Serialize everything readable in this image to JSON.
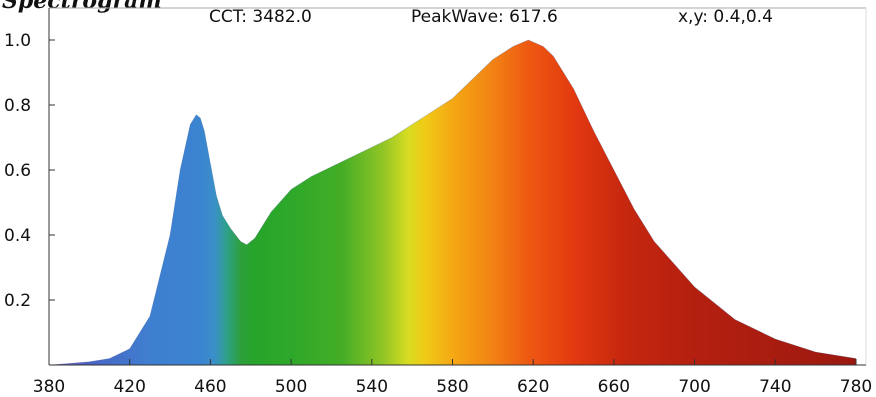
{
  "title": "Spectrogram",
  "info": {
    "cct": "CCT: 3482.0",
    "peak": "PeakWave: 617.6",
    "xy": "x,y: 0.4,0.4"
  },
  "chart_data": {
    "type": "area",
    "title": "Spectrogram",
    "xlabel": "",
    "ylabel": "",
    "xlim": [
      380,
      780
    ],
    "ylim": [
      0,
      1.0
    ],
    "xticks": [
      380,
      420,
      460,
      500,
      540,
      580,
      620,
      660,
      700,
      740,
      780
    ],
    "yticks": [
      0.2,
      0.4,
      0.6,
      0.8,
      1.0
    ],
    "grid": false,
    "fill": "visible-spectrum gradient by wavelength",
    "x": [
      380,
      400,
      410,
      420,
      430,
      440,
      445,
      450,
      453,
      455,
      457,
      460,
      463,
      466,
      470,
      475,
      478,
      482,
      490,
      500,
      510,
      520,
      530,
      540,
      550,
      560,
      570,
      580,
      590,
      600,
      610,
      617.6,
      625,
      630,
      640,
      650,
      660,
      670,
      680,
      700,
      720,
      740,
      760,
      780
    ],
    "values": [
      0.0,
      0.01,
      0.02,
      0.05,
      0.15,
      0.4,
      0.6,
      0.74,
      0.77,
      0.76,
      0.72,
      0.62,
      0.52,
      0.46,
      0.42,
      0.38,
      0.37,
      0.39,
      0.47,
      0.54,
      0.58,
      0.61,
      0.64,
      0.67,
      0.7,
      0.74,
      0.78,
      0.82,
      0.88,
      0.94,
      0.98,
      1.0,
      0.98,
      0.95,
      0.85,
      0.72,
      0.6,
      0.48,
      0.38,
      0.24,
      0.14,
      0.08,
      0.04,
      0.02
    ]
  }
}
